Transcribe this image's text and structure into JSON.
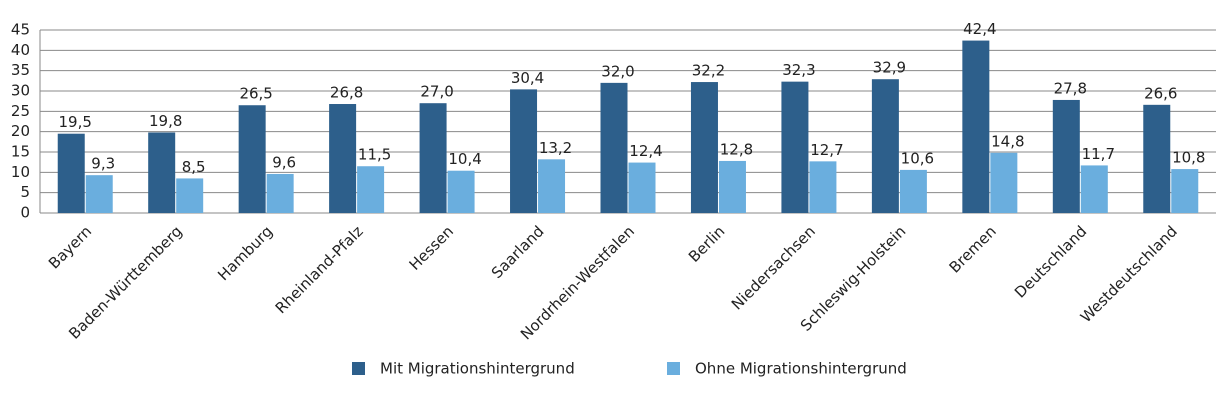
{
  "chart_data": {
    "type": "bar",
    "categories": [
      "Bayern",
      "Baden-Württemberg",
      "Hamburg",
      "Rheinland-Pfalz",
      "Hessen",
      "Saarland",
      "Nordrhein-Westfalen",
      "Berlin",
      "Niedersachsen",
      "Schleswig-Holstein",
      "Bremen",
      "Deutschland",
      "Westdeutschland"
    ],
    "series": [
      {
        "name": "Mit Migrationshintergrund",
        "color": "#2d5f8b",
        "values": [
          19.5,
          19.8,
          26.5,
          26.8,
          27.0,
          30.4,
          32.0,
          32.2,
          32.3,
          32.9,
          42.4,
          27.8,
          26.6
        ],
        "value_labels": [
          "19,5",
          "19,8",
          "26,5",
          "26,8",
          "27,0",
          "30,4",
          "32,0",
          "32,2",
          "32,3",
          "32,9",
          "42,4",
          "27,8",
          "26,6"
        ]
      },
      {
        "name": "Ohne Migrationshintergrund",
        "color": "#6aaede",
        "values": [
          9.3,
          8.5,
          9.6,
          11.5,
          10.4,
          13.2,
          12.4,
          12.8,
          12.7,
          10.6,
          14.8,
          11.7,
          10.8
        ],
        "value_labels": [
          "9,3",
          "8,5",
          "9,6",
          "11,5",
          "10,4",
          "13,2",
          "12,4",
          "12,8",
          "12,7",
          "10,6",
          "14,8",
          "11,7",
          "10,8"
        ]
      }
    ],
    "ylim": [
      0,
      45
    ],
    "yticks": [
      0,
      5,
      10,
      15,
      20,
      25,
      30,
      35,
      40,
      45
    ],
    "grid": true
  }
}
